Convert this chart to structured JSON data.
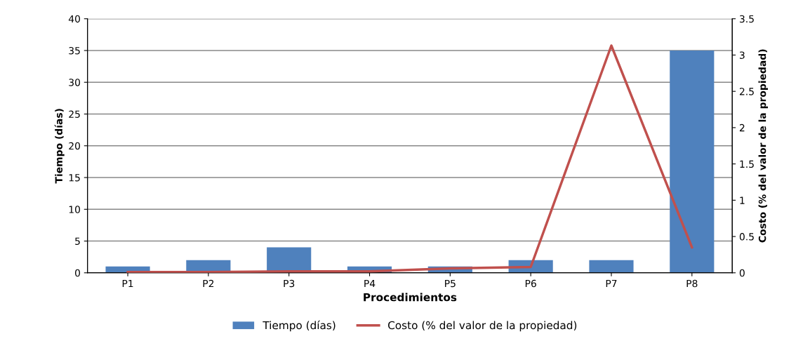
{
  "chart_data": {
    "type": "bar",
    "xlabel": "Procedimientos",
    "ylabel": "Tiempo (días)",
    "y2label": "Costo (% del valor de la propiedad)",
    "categories": [
      "P1",
      "P2",
      "P3",
      "P4",
      "P5",
      "P6",
      "P7",
      "P8"
    ],
    "series": [
      {
        "name": "Tiempo (días)",
        "color": "#4f81bd",
        "values": [
          1,
          2,
          4,
          1,
          1,
          2,
          2,
          35
        ]
      },
      {
        "name": "Costo (% del valor de la propiedad)",
        "type": "line",
        "axis": "y2",
        "color": "#c0504d",
        "values": [
          0.01,
          0.01,
          0.02,
          0.02,
          0.06,
          0.08,
          3.13,
          0.35
        ]
      }
    ],
    "ylim": [
      0,
      40
    ],
    "yticks": [
      0,
      5,
      10,
      15,
      20,
      25,
      30,
      35,
      40
    ],
    "y2lim": [
      0,
      3.5
    ],
    "y2ticks": [
      0,
      0.5,
      1,
      1.5,
      2,
      2.5,
      3,
      3.5
    ],
    "grid": "y",
    "legend": "bottom"
  }
}
